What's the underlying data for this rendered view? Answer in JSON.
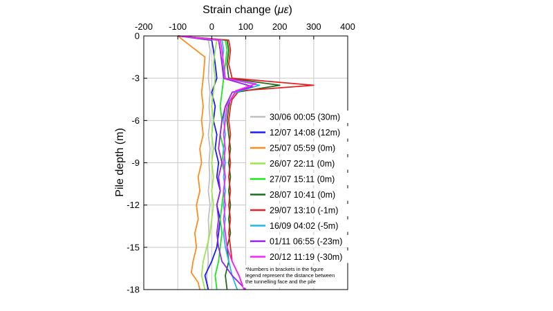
{
  "chart_data": {
    "type": "line",
    "orientation": "depth-profile",
    "title": "",
    "xlabel": "Strain change (με)",
    "xlabel_main": "Strain change (",
    "xlabel_unit": "με",
    "xlabel_close": ")",
    "ylabel": "Pile depth (m)",
    "xlim": [
      -200,
      400
    ],
    "ylim": [
      0,
      -18
    ],
    "x_ticks": [
      -200,
      -100,
      0,
      100,
      200,
      300,
      400
    ],
    "y_ticks": [
      0,
      -3,
      -6,
      -9,
      -12,
      -15,
      -18
    ],
    "grid": true,
    "legend_position": "right",
    "note_lines": [
      "*Numbers in brackets in the figure",
      "legend represent the distance between",
      "the tunnelling face and the pile"
    ],
    "series": [
      {
        "name": "30/06 00:05 (30m)",
        "color": "#c0c0c0",
        "points": [
          [
            -100,
            0
          ],
          [
            -10,
            -0.3
          ],
          [
            -5,
            -1
          ],
          [
            -8,
            -2
          ],
          [
            -10,
            -3
          ],
          [
            -5,
            -4
          ],
          [
            -8,
            -5
          ],
          [
            -5,
            -6
          ],
          [
            -10,
            -7
          ],
          [
            -5,
            -8
          ],
          [
            -8,
            -9
          ],
          [
            -6,
            -10
          ],
          [
            -10,
            -11
          ],
          [
            -5,
            -12
          ],
          [
            -10,
            -13
          ],
          [
            -8,
            -14
          ],
          [
            -12,
            -15
          ],
          [
            -10,
            -16
          ],
          [
            -15,
            -17
          ],
          [
            -12,
            -18
          ]
        ]
      },
      {
        "name": "12/07 14:08 (12m)",
        "color": "#1a1aff",
        "points": [
          [
            -100,
            0
          ],
          [
            0,
            -0.3
          ],
          [
            5,
            -1
          ],
          [
            10,
            -2
          ],
          [
            15,
            -3
          ],
          [
            0,
            -4
          ],
          [
            10,
            -5
          ],
          [
            5,
            -6
          ],
          [
            15,
            -7
          ],
          [
            10,
            -8
          ],
          [
            20,
            -9
          ],
          [
            15,
            -10
          ],
          [
            25,
            -11
          ],
          [
            15,
            -12
          ],
          [
            25,
            -13
          ],
          [
            20,
            -14
          ],
          [
            15,
            -15
          ],
          [
            0,
            -16
          ],
          [
            -20,
            -17
          ],
          [
            -10,
            -18
          ]
        ]
      },
      {
        "name": "25/07 05:59 (0m)",
        "color": "#ff8c1a",
        "points": [
          [
            -100,
            0
          ],
          [
            -20,
            -1.5
          ],
          [
            -25,
            -3
          ],
          [
            -30,
            -4
          ],
          [
            -25,
            -5
          ],
          [
            -30,
            -6
          ],
          [
            -25,
            -7
          ],
          [
            -35,
            -8
          ],
          [
            -30,
            -9
          ],
          [
            -40,
            -10
          ],
          [
            -35,
            -11
          ],
          [
            -45,
            -12
          ],
          [
            -40,
            -13
          ],
          [
            -50,
            -14
          ],
          [
            -45,
            -15
          ],
          [
            -55,
            -16
          ],
          [
            -60,
            -16.8
          ],
          [
            -40,
            -17.5
          ],
          [
            -35,
            -18
          ]
        ]
      },
      {
        "name": "26/07 22:11 (0m)",
        "color": "#99e64d",
        "points": [
          [
            -100,
            0
          ],
          [
            15,
            -0.3
          ],
          [
            10,
            -1
          ],
          [
            5,
            -2
          ],
          [
            10,
            -3
          ],
          [
            5,
            -4
          ],
          [
            0,
            -5
          ],
          [
            5,
            -6
          ],
          [
            0,
            -7
          ],
          [
            5,
            -8
          ],
          [
            0,
            -9
          ],
          [
            5,
            -10
          ],
          [
            0,
            -11
          ],
          [
            5,
            -12
          ],
          [
            0,
            -13
          ],
          [
            -5,
            -14
          ],
          [
            -15,
            -15
          ],
          [
            -25,
            -16
          ],
          [
            -30,
            -17
          ],
          [
            -20,
            -18
          ]
        ]
      },
      {
        "name": "27/07 15:11 (0m)",
        "color": "#1ae61a",
        "points": [
          [
            -100,
            0
          ],
          [
            40,
            -0.3
          ],
          [
            45,
            -1
          ],
          [
            40,
            -2
          ],
          [
            35,
            -3
          ],
          [
            30,
            -4
          ],
          [
            25,
            -5
          ],
          [
            30,
            -6
          ],
          [
            25,
            -7
          ],
          [
            35,
            -8
          ],
          [
            30,
            -9
          ],
          [
            40,
            -10
          ],
          [
            35,
            -11
          ],
          [
            30,
            -12
          ],
          [
            25,
            -13
          ],
          [
            30,
            -14
          ],
          [
            25,
            -15
          ],
          [
            20,
            -16
          ],
          [
            10,
            -17
          ],
          [
            15,
            -18
          ]
        ]
      },
      {
        "name": "28/07 10:41 (0m)",
        "color": "#1a6b1a",
        "points": [
          [
            -100,
            0
          ],
          [
            45,
            -0.3
          ],
          [
            50,
            -1
          ],
          [
            45,
            -2
          ],
          [
            50,
            -3
          ],
          [
            200,
            -3.5
          ],
          [
            70,
            -4
          ],
          [
            55,
            -4.5
          ],
          [
            50,
            -5
          ],
          [
            45,
            -6
          ],
          [
            50,
            -7
          ],
          [
            55,
            -8
          ],
          [
            50,
            -9
          ],
          [
            55,
            -10
          ],
          [
            50,
            -11
          ],
          [
            55,
            -12
          ],
          [
            50,
            -13
          ],
          [
            55,
            -14
          ],
          [
            45,
            -15
          ],
          [
            50,
            -16
          ],
          [
            40,
            -17
          ],
          [
            45,
            -18
          ]
        ]
      },
      {
        "name": "29/07 13:10 (-1m)",
        "color": "#e62020",
        "points": [
          [
            -100,
            0
          ],
          [
            50,
            -0.3
          ],
          [
            55,
            -1
          ],
          [
            50,
            -2
          ],
          [
            60,
            -3
          ],
          [
            300,
            -3.5
          ],
          [
            80,
            -3.9
          ],
          [
            60,
            -4.5
          ],
          [
            55,
            -5
          ],
          [
            50,
            -6
          ],
          [
            55,
            -7
          ],
          [
            50,
            -8
          ],
          [
            55,
            -9
          ],
          [
            50,
            -10
          ],
          [
            55,
            -11
          ],
          [
            50,
            -12
          ],
          [
            55,
            -13
          ],
          [
            50,
            -14
          ],
          [
            55,
            -15
          ],
          [
            60,
            -16
          ],
          [
            80,
            -17
          ],
          [
            95,
            -18
          ]
        ]
      },
      {
        "name": "16/09 04:02 (-5m)",
        "color": "#20b8e6",
        "points": [
          [
            -100,
            0
          ],
          [
            30,
            -0.3
          ],
          [
            35,
            -1
          ],
          [
            30,
            -2
          ],
          [
            40,
            -3
          ],
          [
            140,
            -3.5
          ],
          [
            70,
            -4
          ],
          [
            40,
            -5
          ],
          [
            35,
            -6
          ],
          [
            40,
            -7
          ],
          [
            35,
            -8
          ],
          [
            40,
            -9
          ],
          [
            35,
            -10
          ],
          [
            40,
            -11
          ],
          [
            35,
            -12
          ],
          [
            40,
            -13
          ],
          [
            35,
            -14
          ],
          [
            40,
            -15
          ],
          [
            50,
            -16
          ],
          [
            60,
            -17
          ],
          [
            75,
            -18
          ]
        ]
      },
      {
        "name": "01/11 06:55 (-23m)",
        "color": "#9a20e6",
        "points": [
          [
            -100,
            0
          ],
          [
            20,
            -0.3
          ],
          [
            25,
            -1
          ],
          [
            30,
            -2
          ],
          [
            35,
            -3
          ],
          [
            120,
            -3.6
          ],
          [
            60,
            -4
          ],
          [
            40,
            -5
          ],
          [
            30,
            -6
          ],
          [
            25,
            -7
          ],
          [
            20,
            -8
          ],
          [
            30,
            -9
          ],
          [
            20,
            -10
          ],
          [
            25,
            -11
          ],
          [
            15,
            -12
          ],
          [
            20,
            -13
          ],
          [
            15,
            -14
          ],
          [
            20,
            -15
          ],
          [
            30,
            -16
          ],
          [
            60,
            -17
          ],
          [
            100,
            -18
          ]
        ]
      },
      {
        "name": "20/12 11:19 (-30m)",
        "color": "#ff20ff",
        "points": [
          [
            -100,
            0
          ],
          [
            25,
            -0.3
          ],
          [
            30,
            -1
          ],
          [
            35,
            -2
          ],
          [
            40,
            -3
          ],
          [
            130,
            -3.4
          ],
          [
            70,
            -3.9
          ],
          [
            45,
            -5
          ],
          [
            40,
            -6
          ],
          [
            35,
            -7
          ],
          [
            40,
            -8
          ],
          [
            35,
            -9
          ],
          [
            40,
            -10
          ],
          [
            35,
            -11
          ],
          [
            40,
            -12
          ],
          [
            35,
            -13
          ],
          [
            40,
            -14
          ],
          [
            45,
            -15
          ],
          [
            60,
            -16
          ],
          [
            80,
            -17
          ],
          [
            95,
            -18
          ]
        ]
      }
    ]
  }
}
